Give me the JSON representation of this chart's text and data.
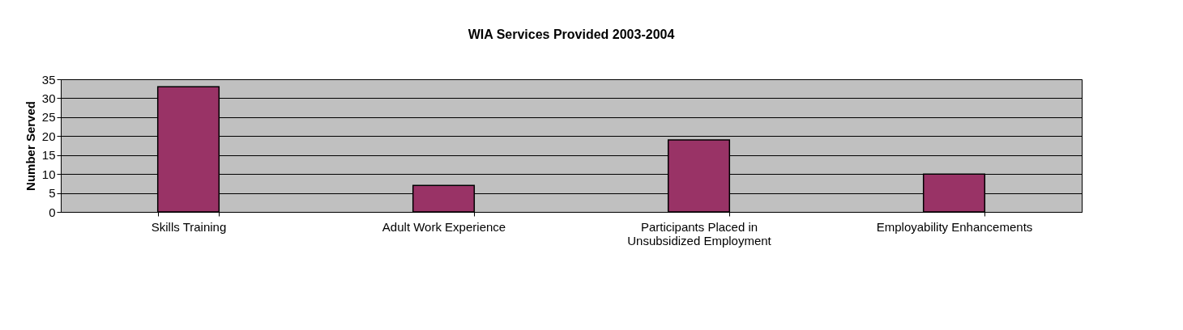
{
  "chart_data": {
    "type": "bar",
    "title": "WIA Services Provided 2003-2004",
    "ylabel": "Number Served",
    "categories": [
      "Skills Training",
      "Adult Work Experience",
      "Participants Placed in Unsubsidized Employment",
      "Employability Enhancements"
    ],
    "values": [
      33,
      7,
      19,
      10
    ],
    "color": "#993366",
    "ylim": [
      0,
      35
    ],
    "yticks": [
      0,
      5,
      10,
      15,
      20,
      25,
      30,
      35
    ],
    "grid": "y"
  }
}
